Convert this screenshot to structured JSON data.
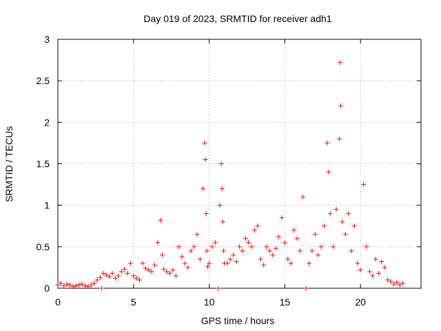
{
  "chart_data": {
    "type": "scatter",
    "title": "Day 019 of 2023, SRMTID for receiver adh1",
    "xlabel": "GPS time / hours",
    "ylabel": "SRMTID / TECUs",
    "xlim": [
      0,
      24
    ],
    "ylim": [
      0,
      3
    ],
    "xticks": [
      0,
      5,
      10,
      15,
      20
    ],
    "xtick_labels": [
      "0",
      "5",
      "10",
      "15",
      "20"
    ],
    "yticks": [
      0,
      0.5,
      1,
      1.5,
      2,
      2.5,
      3
    ],
    "ytick_labels": [
      "0",
      "0.5",
      "1",
      "1.5",
      "2",
      "2.5",
      "3"
    ],
    "grid": true,
    "marker": "+",
    "color": "#ff0000",
    "series": [
      {
        "name": "adh1",
        "x": [
          0.0,
          0.2,
          0.4,
          0.6,
          0.8,
          1.0,
          1.2,
          1.4,
          1.6,
          1.8,
          2.0,
          2.2,
          2.4,
          2.6,
          2.8,
          2.9,
          3.0,
          3.2,
          3.4,
          3.6,
          3.8,
          4.0,
          4.2,
          4.4,
          4.6,
          4.8,
          5.0,
          5.2,
          5.4,
          5.6,
          5.8,
          6.0,
          6.2,
          6.4,
          6.6,
          6.8,
          6.9,
          7.0,
          7.2,
          7.4,
          7.6,
          7.8,
          8.0,
          8.2,
          8.4,
          8.6,
          8.8,
          9.0,
          9.2,
          9.4,
          9.6,
          9.7,
          9.75,
          9.8,
          9.85,
          9.9,
          10.0,
          10.2,
          10.4,
          10.6,
          10.7,
          10.8,
          10.85,
          10.9,
          10.95,
          11.0,
          11.2,
          11.4,
          11.6,
          11.8,
          12.0,
          12.2,
          12.4,
          12.6,
          12.8,
          13.0,
          13.2,
          13.4,
          13.6,
          13.8,
          14.0,
          14.2,
          14.4,
          14.6,
          14.8,
          15.0,
          15.2,
          15.4,
          15.6,
          15.8,
          16.0,
          16.2,
          16.4,
          16.6,
          16.8,
          17.0,
          17.2,
          17.4,
          17.6,
          17.8,
          17.9,
          18.0,
          18.2,
          18.4,
          18.6,
          18.65,
          18.7,
          18.8,
          19.0,
          19.2,
          19.4,
          19.6,
          19.8,
          20.0,
          20.2,
          20.4,
          20.6,
          20.8,
          21.0,
          21.2,
          21.4,
          21.6,
          21.8,
          22.0,
          22.2,
          22.4,
          22.6,
          22.8
        ],
        "y": [
          0.04,
          0.06,
          0.03,
          0.05,
          0.04,
          0.02,
          0.03,
          0.04,
          0.05,
          0.03,
          0.02,
          0.04,
          0.06,
          0.1,
          0.13,
          0.0,
          0.18,
          0.16,
          0.14,
          0.18,
          0.12,
          0.15,
          0.2,
          0.23,
          0.18,
          0.3,
          0.15,
          0.12,
          0.1,
          0.3,
          0.24,
          0.22,
          0.2,
          0.28,
          0.55,
          0.82,
          0.4,
          0.23,
          0.2,
          0.18,
          0.22,
          0.15,
          0.5,
          0.38,
          0.3,
          0.25,
          0.45,
          0.5,
          0.65,
          0.35,
          1.2,
          1.75,
          1.55,
          0.9,
          0.45,
          0.26,
          0.3,
          0.5,
          0.55,
          0.0,
          1.0,
          1.5,
          1.2,
          0.8,
          0.45,
          0.3,
          0.3,
          0.35,
          0.4,
          0.32,
          0.5,
          0.45,
          0.6,
          0.55,
          0.5,
          0.7,
          0.75,
          0.35,
          0.28,
          0.5,
          0.45,
          0.4,
          0.48,
          0.62,
          0.85,
          0.55,
          0.35,
          0.3,
          0.7,
          0.6,
          0.45,
          1.1,
          0.0,
          0.3,
          0.45,
          0.65,
          0.4,
          0.5,
          0.75,
          1.75,
          1.4,
          0.9,
          0.5,
          0.95,
          1.8,
          2.72,
          2.2,
          0.8,
          0.65,
          0.9,
          0.45,
          0.75,
          0.3,
          0.22,
          1.25,
          0.5,
          0.2,
          0.15,
          0.35,
          0.18,
          0.32,
          0.25,
          0.1,
          0.08,
          0.05,
          0.07,
          0.04,
          0.06
        ]
      }
    ]
  }
}
